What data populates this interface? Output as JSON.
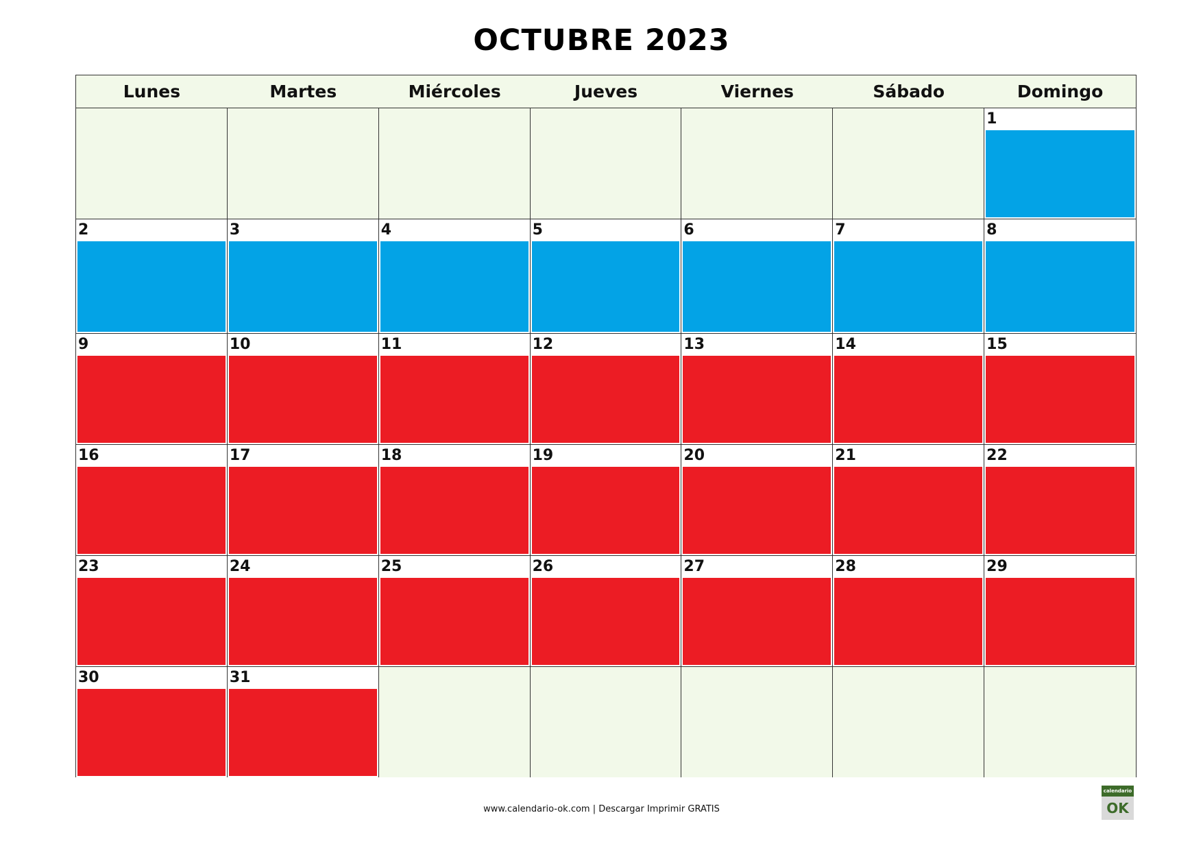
{
  "title": "OCTUBRE 2023",
  "weekdays": [
    "Lunes",
    "Martes",
    "Miércoles",
    "Jueves",
    "Viernes",
    "Sábado",
    "Domingo"
  ],
  "colors": {
    "blue": "#03a3e6",
    "red": "#ec1c24",
    "empty": "#f2f9e9"
  },
  "weeks": [
    [
      null,
      null,
      null,
      null,
      null,
      null,
      {
        "day": "1",
        "color": "blue"
      }
    ],
    [
      {
        "day": "2",
        "color": "blue"
      },
      {
        "day": "3",
        "color": "blue"
      },
      {
        "day": "4",
        "color": "blue"
      },
      {
        "day": "5",
        "color": "blue"
      },
      {
        "day": "6",
        "color": "blue"
      },
      {
        "day": "7",
        "color": "blue"
      },
      {
        "day": "8",
        "color": "blue"
      }
    ],
    [
      {
        "day": "9",
        "color": "red"
      },
      {
        "day": "10",
        "color": "red"
      },
      {
        "day": "11",
        "color": "red"
      },
      {
        "day": "12",
        "color": "red"
      },
      {
        "day": "13",
        "color": "red"
      },
      {
        "day": "14",
        "color": "red"
      },
      {
        "day": "15",
        "color": "red"
      }
    ],
    [
      {
        "day": "16",
        "color": "red"
      },
      {
        "day": "17",
        "color": "red"
      },
      {
        "day": "18",
        "color": "red"
      },
      {
        "day": "19",
        "color": "red"
      },
      {
        "day": "20",
        "color": "red"
      },
      {
        "day": "21",
        "color": "red"
      },
      {
        "day": "22",
        "color": "red"
      }
    ],
    [
      {
        "day": "23",
        "color": "red"
      },
      {
        "day": "24",
        "color": "red"
      },
      {
        "day": "25",
        "color": "red"
      },
      {
        "day": "26",
        "color": "red"
      },
      {
        "day": "27",
        "color": "red"
      },
      {
        "day": "28",
        "color": "red"
      },
      {
        "day": "29",
        "color": "red"
      }
    ],
    [
      {
        "day": "30",
        "color": "red"
      },
      {
        "day": "31",
        "color": "red"
      },
      null,
      null,
      null,
      null,
      null
    ]
  ],
  "footer": "www.calendario-ok.com | Descargar Imprimir GRATIS",
  "logo": {
    "top_text": "calendario",
    "main_text": "OK"
  }
}
